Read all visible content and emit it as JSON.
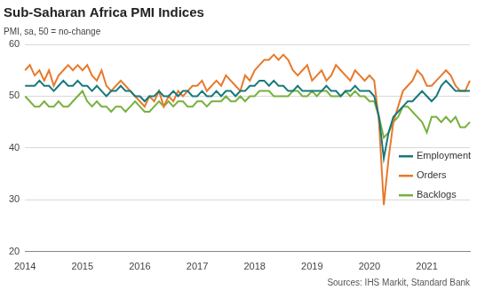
{
  "chart_data": {
    "type": "line",
    "title": "Sub-Saharan Africa PMI Indices",
    "subtitle": "PMI, sa, 50 = no-change",
    "annotations": [
      "Sources: IHS Markit, Standard Bank"
    ],
    "categories": [
      "2014",
      null,
      null,
      null,
      null,
      null,
      null,
      null,
      null,
      null,
      null,
      null,
      "2015",
      null,
      null,
      null,
      null,
      null,
      null,
      null,
      null,
      null,
      null,
      null,
      "2016",
      null,
      null,
      null,
      null,
      null,
      null,
      null,
      null,
      null,
      null,
      null,
      "2017",
      null,
      null,
      null,
      null,
      null,
      null,
      null,
      null,
      null,
      null,
      null,
      "2018",
      null,
      null,
      null,
      null,
      null,
      null,
      null,
      null,
      null,
      null,
      null,
      "2019",
      null,
      null,
      null,
      null,
      null,
      null,
      null,
      null,
      null,
      null,
      null,
      "2020",
      null,
      null,
      null,
      null,
      null,
      null,
      null,
      null,
      null,
      null,
      null,
      "2021",
      null,
      null,
      null,
      null,
      null,
      null,
      null,
      null,
      null
    ],
    "series": [
      {
        "name": "Employment",
        "color": "#17797b",
        "values": [
          52,
          52,
          52,
          53,
          52,
          52,
          51,
          52,
          53,
          52,
          52,
          53,
          52,
          52,
          51,
          52,
          51,
          50,
          51,
          51,
          52,
          51,
          51,
          50,
          50,
          49,
          50,
          50,
          51,
          50,
          50,
          51,
          50,
          51,
          51,
          50,
          50,
          51,
          50,
          50,
          51,
          50,
          51,
          51,
          50,
          51,
          51,
          52,
          52,
          53,
          53,
          52,
          53,
          52,
          52,
          51,
          51,
          52,
          51,
          51,
          51,
          51,
          51,
          52,
          51,
          51,
          50,
          51,
          51,
          52,
          51,
          51,
          51,
          50,
          46,
          38,
          43,
          46,
          47,
          48,
          49,
          49,
          50,
          51,
          50,
          49,
          50,
          52,
          53,
          52,
          51,
          51,
          51,
          51
        ]
      },
      {
        "name": "Orders",
        "color": "#e8792b",
        "values": [
          55,
          56,
          54,
          55,
          53,
          55,
          52,
          54,
          55,
          56,
          55,
          56,
          55,
          56,
          54,
          53,
          55,
          52,
          51,
          52,
          53,
          52,
          51,
          50,
          49,
          48,
          50,
          49,
          51,
          48,
          50,
          49,
          51,
          50,
          51,
          52,
          52,
          53,
          51,
          52,
          53,
          52,
          54,
          53,
          52,
          51,
          54,
          53,
          55,
          56,
          57,
          57,
          58,
          57,
          58,
          57,
          55,
          54,
          55,
          56,
          53,
          54,
          55,
          53,
          54,
          56,
          55,
          54,
          53,
          55,
          54,
          53,
          54,
          53,
          45,
          29,
          38,
          45,
          48,
          51,
          52,
          53,
          55,
          54,
          52,
          52,
          53,
          54,
          55,
          54,
          52,
          51,
          51,
          53
        ]
      },
      {
        "name": "Backlogs",
        "color": "#78b13f",
        "values": [
          50,
          49,
          48,
          48,
          49,
          48,
          48,
          49,
          48,
          48,
          49,
          50,
          51,
          49,
          48,
          49,
          48,
          48,
          47,
          48,
          48,
          47,
          48,
          49,
          48,
          47,
          47,
          48,
          49,
          48,
          49,
          48,
          49,
          49,
          48,
          48,
          49,
          49,
          48,
          49,
          49,
          49,
          50,
          49,
          49,
          50,
          49,
          50,
          50,
          51,
          51,
          51,
          50,
          50,
          50,
          50,
          51,
          51,
          50,
          50,
          51,
          50,
          51,
          51,
          50,
          50,
          50,
          51,
          50,
          51,
          50,
          50,
          49,
          49,
          46,
          42,
          43,
          45,
          46,
          48,
          48,
          47,
          46,
          45,
          43,
          46,
          46,
          45,
          46,
          45,
          46,
          44,
          44,
          45
        ]
      }
    ],
    "ylim": [
      20,
      60
    ],
    "yticks": [
      20,
      30,
      40,
      50,
      60
    ],
    "grid": true,
    "legend": "right"
  }
}
